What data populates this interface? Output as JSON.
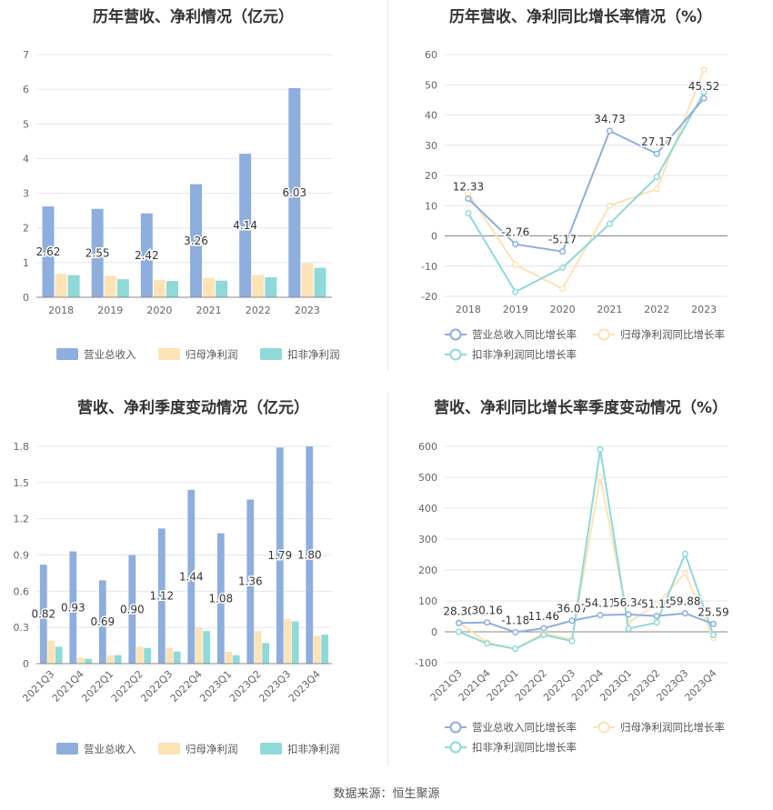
{
  "source": "数据来源：恒生聚源",
  "chart_data": [
    {
      "id": "annual_revenue_profit",
      "type": "bar",
      "title": "历年营收、净利情况（亿元）",
      "categories": [
        "2018",
        "2019",
        "2020",
        "2021",
        "2022",
        "2023"
      ],
      "series": [
        {
          "name": "营业总收入",
          "color": "#8eaedd",
          "values": [
            2.62,
            2.55,
            2.42,
            3.26,
            4.14,
            6.03
          ],
          "labels": [
            "2.62",
            "2.55",
            "2.42",
            "3.26",
            "4.14",
            "6.03"
          ]
        },
        {
          "name": "归母净利润",
          "color": "#fde3b5",
          "values": [
            0.67,
            0.62,
            0.5,
            0.56,
            0.64,
            0.98
          ]
        },
        {
          "name": "扣非净利润",
          "color": "#8fd9d9",
          "values": [
            0.64,
            0.52,
            0.47,
            0.48,
            0.58,
            0.85
          ]
        }
      ],
      "yticks": [
        0,
        1,
        2,
        3,
        4,
        5,
        6,
        7
      ],
      "ylim": [
        0,
        7
      ],
      "legend": "bottom"
    },
    {
      "id": "annual_growth",
      "type": "line",
      "title": "历年营收、净利同比增长率情况（%）",
      "categories": [
        "2018",
        "2019",
        "2020",
        "2021",
        "2022",
        "2023"
      ],
      "series": [
        {
          "name": "营业总收入同比增长率",
          "color": "#8eaedd",
          "values": [
            12.33,
            -2.76,
            -5.17,
            34.73,
            27.17,
            45.52
          ],
          "labels": [
            "12.33",
            "-2.76",
            "-5.17",
            "34.73",
            "27.17",
            "45.52"
          ]
        },
        {
          "name": "归母净利润同比增长率",
          "color": "#fde3b5",
          "values": [
            14.0,
            -9.5,
            -17.5,
            10.0,
            15.5,
            55.0
          ]
        },
        {
          "name": "扣非净利润同比增长率",
          "color": "#8fd9d9",
          "values": [
            7.5,
            -18.5,
            -10.5,
            4.0,
            19.5,
            47.5
          ]
        }
      ],
      "yticks": [
        -20,
        -10,
        0,
        10,
        20,
        30,
        40,
        50,
        60
      ],
      "ylim": [
        -20,
        60
      ],
      "legend": "bottom"
    },
    {
      "id": "quarterly_revenue_profit",
      "type": "bar",
      "title": "营收、净利季度变动情况（亿元）",
      "categories": [
        "2021Q3",
        "2021Q4",
        "2022Q1",
        "2022Q2",
        "2022Q3",
        "2022Q4",
        "2023Q1",
        "2023Q2",
        "2023Q3",
        "2023Q4"
      ],
      "series": [
        {
          "name": "营业总收入",
          "color": "#8eaedd",
          "values": [
            0.82,
            0.93,
            0.69,
            0.9,
            1.12,
            1.44,
            1.08,
            1.36,
            1.79,
            1.8
          ],
          "labels": [
            "0.82",
            "0.93",
            "0.69",
            "0.90",
            "1.12",
            "1.44",
            "1.08",
            "1.36",
            "1.79",
            "1.80"
          ]
        },
        {
          "name": "归母净利润",
          "color": "#fde3b5",
          "values": [
            0.19,
            0.05,
            0.07,
            0.14,
            0.13,
            0.3,
            0.1,
            0.27,
            0.37,
            0.23
          ]
        },
        {
          "name": "扣非净利润",
          "color": "#8fd9d9",
          "values": [
            0.14,
            0.04,
            0.07,
            0.13,
            0.1,
            0.27,
            0.07,
            0.17,
            0.35,
            0.24
          ]
        }
      ],
      "yticks": [
        "0",
        "0.3",
        "0.6",
        "0.9",
        "1.2",
        "1.5",
        "1.8"
      ],
      "ylim": [
        0,
        1.8
      ],
      "legend": "bottom"
    },
    {
      "id": "quarterly_growth",
      "type": "line",
      "title": "营收、净利同比增长率季度变动情况（%）",
      "categories": [
        "2021Q3",
        "2021Q4",
        "2022Q1",
        "2022Q2",
        "2022Q3",
        "2022Q4",
        "2023Q1",
        "2023Q2",
        "2023Q3",
        "2023Q4"
      ],
      "series": [
        {
          "name": "营业总收入同比增长率",
          "color": "#8eaedd",
          "values": [
            28.3,
            30.16,
            -1.18,
            11.46,
            36.07,
            54.11,
            56.34,
            51.15,
            59.88,
            25.59
          ],
          "labels": [
            "28.30",
            "30.16",
            "-1.18",
            "11.46",
            "36.07",
            "54.11",
            "56.34",
            "51.15",
            "59.88",
            "25.59"
          ]
        },
        {
          "name": "归母净利润同比增长率",
          "color": "#fde3b5",
          "values": [
            30,
            -35,
            -55,
            -5,
            -25,
            500,
            30,
            90,
            190,
            -20
          ]
        },
        {
          "name": "扣非净利润同比增长率",
          "color": "#8fd9d9",
          "values": [
            0,
            -38,
            -55,
            -10,
            -30,
            590,
            10,
            30,
            252,
            -10
          ]
        }
      ],
      "yticks": [
        -100,
        0,
        100,
        200,
        300,
        400,
        500,
        600
      ],
      "ylim": [
        -100,
        600
      ],
      "legend": "bottom"
    }
  ]
}
